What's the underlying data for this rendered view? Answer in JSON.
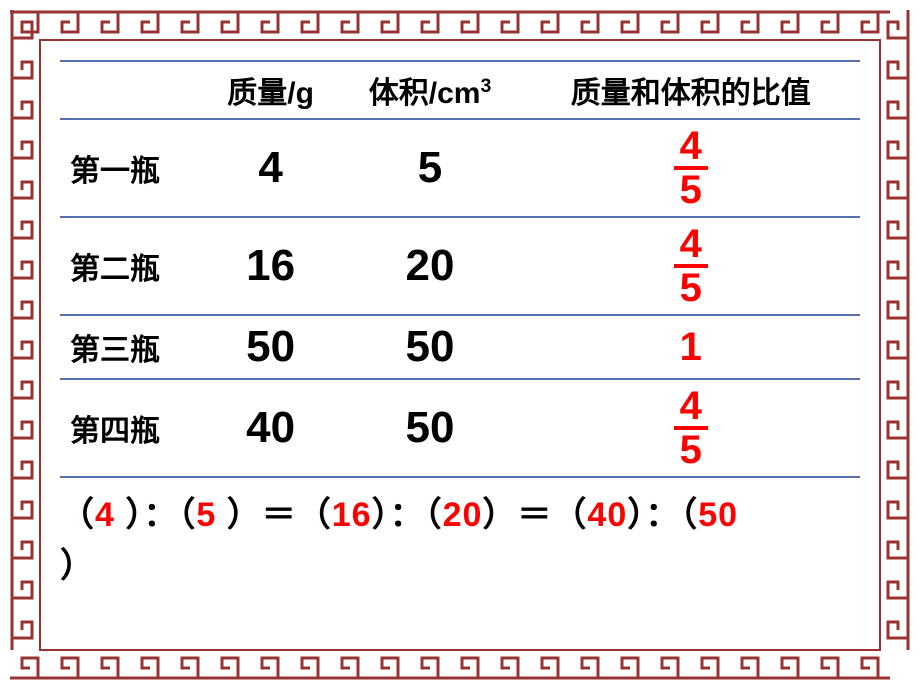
{
  "border": {
    "color": "#993333",
    "bg": "#ffffff"
  },
  "table": {
    "border_color": "#5570aa",
    "headers": {
      "blank": "",
      "mass": "质量/g",
      "volume_prefix": "体积/cm",
      "volume_sup": "3",
      "ratio": "质量和体积的比值"
    },
    "rows": [
      {
        "label": "第一瓶",
        "mass": "4",
        "volume": "5",
        "ratio_type": "frac",
        "num": "4",
        "den": "5"
      },
      {
        "label": "第二瓶",
        "mass": "16",
        "volume": "20",
        "ratio_type": "frac",
        "num": "4",
        "den": "5"
      },
      {
        "label": "第三瓶",
        "mass": "50",
        "volume": "50",
        "ratio_type": "int",
        "val": "1"
      },
      {
        "label": "第四瓶",
        "mass": "40",
        "volume": "50",
        "ratio_type": "frac",
        "num": "4",
        "den": "5"
      }
    ]
  },
  "equation": {
    "parts": [
      {
        "t": "blk",
        "v": "（"
      },
      {
        "t": "red",
        "v": "4"
      },
      {
        "t": "blk",
        "v": " ）：（"
      },
      {
        "t": "red",
        "v": "5"
      },
      {
        "t": "blk",
        "v": " ）＝（"
      },
      {
        "t": "red",
        "v": "16"
      },
      {
        "t": "blk",
        "v": "）：（"
      },
      {
        "t": "red",
        "v": "20"
      },
      {
        "t": "blk",
        "v": "）＝（"
      },
      {
        "t": "red",
        "v": "40"
      },
      {
        "t": "blk",
        "v": "）：（"
      },
      {
        "t": "red",
        "v": "50"
      }
    ],
    "tail": "）"
  }
}
